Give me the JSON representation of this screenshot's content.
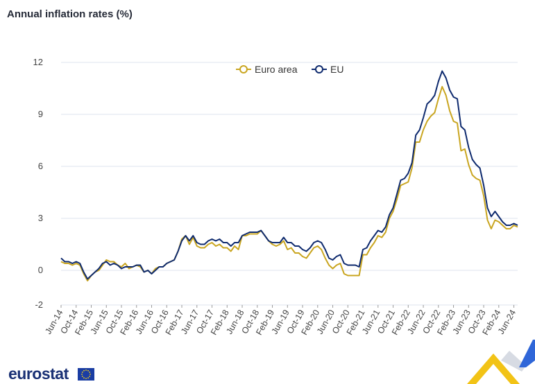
{
  "title": "Annual inflation rates (%)",
  "brand": {
    "name": "eurostat"
  },
  "colors": {
    "euro_area": "#c9a51f",
    "eu": "#0e2a6e",
    "grid": "#dde3ee",
    "accent_blue": "#2f66d8",
    "accent_yellow": "#f2c316"
  },
  "chart_data": {
    "type": "line",
    "title": "Annual inflation rates (%)",
    "xlabel": "",
    "ylabel": "",
    "ylim": [
      -2,
      12
    ],
    "yticks": [
      12,
      9,
      6,
      3,
      0,
      -2
    ],
    "grid": true,
    "legend_position": "top-center",
    "xtick_labels": [
      "Jun-14",
      "Oct-14",
      "Feb-15",
      "Jun-15",
      "Oct-15",
      "Feb-16",
      "Jun-16",
      "Oct-16",
      "Feb-17",
      "Jun-17",
      "Oct-17",
      "Feb-18",
      "Jun-18",
      "Oct-18",
      "Feb-19",
      "Jun-19",
      "Oct-19",
      "Feb-20",
      "Jun-20",
      "Oct-20",
      "Feb-21",
      "Jun-21",
      "Oct-21",
      "Feb-22",
      "Jun-22",
      "Oct-22",
      "Feb-23",
      "Jun-23",
      "Oct-23",
      "Feb-24",
      "Jun-24"
    ],
    "x_start": "Jun-14",
    "x_end": "Jun-24",
    "series": [
      {
        "name": "Euro area",
        "color": "#c9a51f",
        "values": [
          0.5,
          0.4,
          0.4,
          0.3,
          0.4,
          0.3,
          -0.2,
          -0.6,
          -0.3,
          -0.1,
          0.0,
          0.3,
          0.6,
          0.5,
          0.5,
          0.3,
          0.2,
          0.4,
          0.1,
          0.2,
          0.3,
          0.2,
          -0.1,
          0.0,
          -0.2,
          0.1,
          0.2,
          0.2,
          0.4,
          0.5,
          0.6,
          1.1,
          1.8,
          2.0,
          1.5,
          1.9,
          1.4,
          1.3,
          1.3,
          1.5,
          1.6,
          1.4,
          1.5,
          1.3,
          1.3,
          1.1,
          1.4,
          1.2,
          2.0,
          2.0,
          2.1,
          2.1,
          2.1,
          2.3,
          2.0,
          1.7,
          1.5,
          1.4,
          1.5,
          1.7,
          1.2,
          1.3,
          1.0,
          1.0,
          0.8,
          0.7,
          1.0,
          1.3,
          1.4,
          1.2,
          0.7,
          0.3,
          0.1,
          0.3,
          0.4,
          -0.2,
          -0.3,
          -0.3,
          -0.3,
          -0.3,
          0.9,
          0.9,
          1.3,
          1.6,
          2.0,
          1.9,
          2.2,
          3.0,
          3.4,
          4.1,
          4.9,
          5.0,
          5.1,
          5.9,
          7.4,
          7.4,
          8.1,
          8.6,
          8.9,
          9.1,
          9.9,
          10.6,
          10.1,
          9.2,
          8.6,
          8.5,
          6.9,
          7.0,
          6.1,
          5.5,
          5.3,
          5.2,
          4.3,
          2.9,
          2.4,
          2.9,
          2.8,
          2.6,
          2.4,
          2.4,
          2.6,
          2.5
        ]
      },
      {
        "name": "EU",
        "color": "#0e2a6e",
        "values": [
          0.7,
          0.5,
          0.5,
          0.4,
          0.5,
          0.4,
          -0.1,
          -0.5,
          -0.3,
          -0.1,
          0.1,
          0.4,
          0.5,
          0.3,
          0.4,
          0.3,
          0.1,
          0.2,
          0.2,
          0.2,
          0.3,
          0.3,
          -0.1,
          0.0,
          -0.2,
          0.0,
          0.2,
          0.2,
          0.4,
          0.5,
          0.6,
          1.1,
          1.7,
          2.0,
          1.7,
          2.0,
          1.6,
          1.5,
          1.5,
          1.7,
          1.8,
          1.7,
          1.8,
          1.6,
          1.6,
          1.4,
          1.6,
          1.6,
          2.0,
          2.1,
          2.2,
          2.2,
          2.2,
          2.3,
          2.0,
          1.7,
          1.6,
          1.6,
          1.6,
          1.9,
          1.6,
          1.6,
          1.4,
          1.4,
          1.2,
          1.1,
          1.3,
          1.6,
          1.7,
          1.6,
          1.2,
          0.7,
          0.6,
          0.8,
          0.9,
          0.4,
          0.3,
          0.3,
          0.3,
          0.2,
          1.2,
          1.3,
          1.7,
          2.0,
          2.3,
          2.2,
          2.5,
          3.2,
          3.6,
          4.4,
          5.2,
          5.3,
          5.6,
          6.2,
          7.8,
          8.1,
          8.8,
          9.6,
          9.8,
          10.1,
          10.9,
          11.5,
          11.1,
          10.4,
          10.0,
          9.9,
          8.3,
          8.1,
          7.1,
          6.4,
          6.1,
          5.9,
          4.9,
          3.6,
          3.1,
          3.4,
          3.1,
          2.8,
          2.6,
          2.6,
          2.7,
          2.6
        ]
      }
    ]
  }
}
